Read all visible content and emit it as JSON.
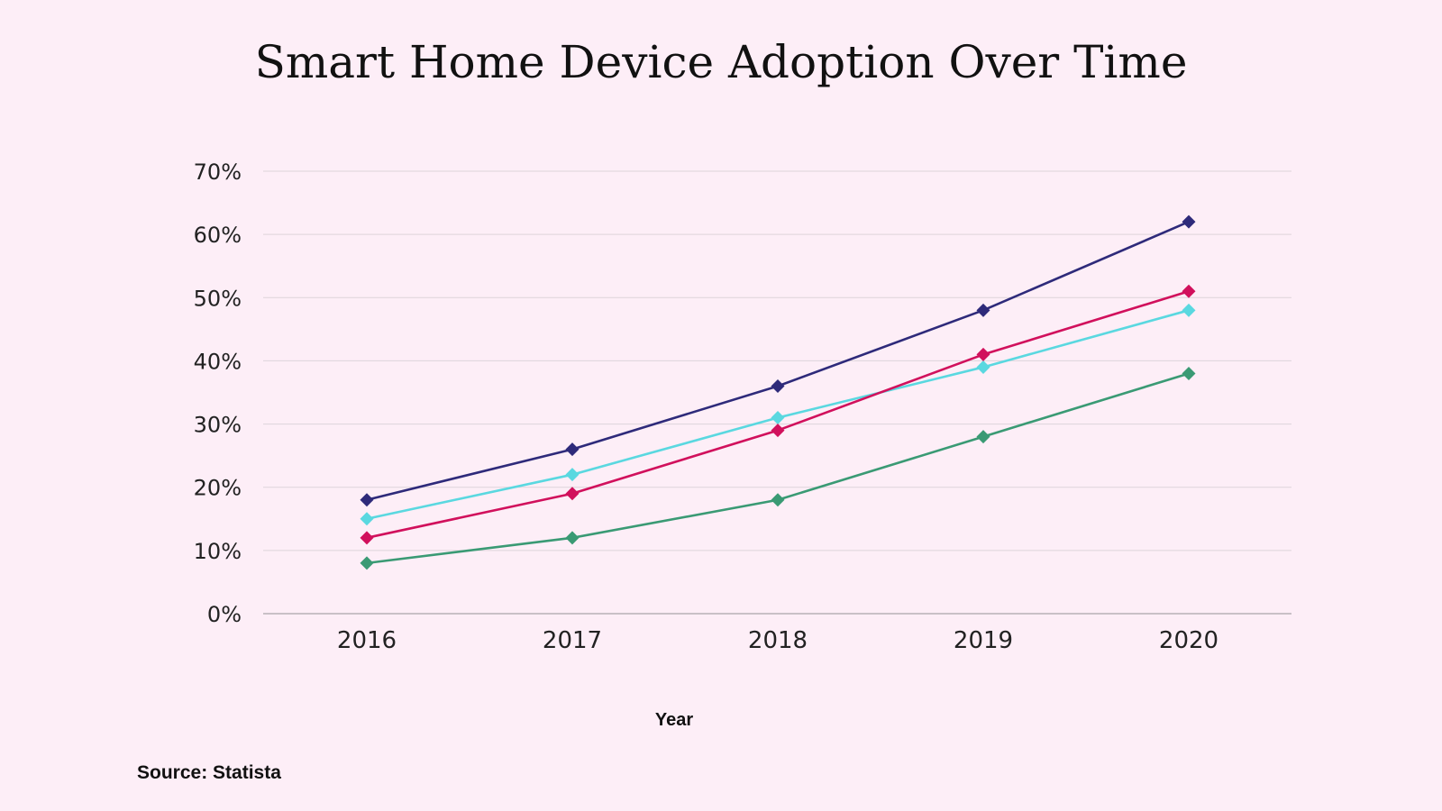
{
  "chart_data": {
    "type": "line",
    "title": "Smart Home Device Adoption Over Time",
    "xlabel": "Year",
    "ylabel": "",
    "x": [
      "2016",
      "2017",
      "2018",
      "2019",
      "2020"
    ],
    "ylim": [
      0,
      70
    ],
    "yticks": [
      0,
      10,
      20,
      30,
      40,
      50,
      60,
      70
    ],
    "ytick_labels": [
      "0%",
      "10%",
      "20%",
      "30%",
      "40%",
      "50%",
      "60%",
      "70%"
    ],
    "grid": "horizontal",
    "legend": "none",
    "marker": "diamond",
    "series": [
      {
        "values": [
          18,
          26,
          36,
          48,
          62
        ],
        "color": "#2e2a7a"
      },
      {
        "values": [
          15,
          22,
          31,
          39,
          48
        ],
        "color": "#5ad8e0"
      },
      {
        "values": [
          12,
          19,
          29,
          41,
          51
        ],
        "color": "#d1105c"
      },
      {
        "values": [
          8,
          12,
          18,
          28,
          38
        ],
        "color": "#3a9a74"
      }
    ]
  },
  "footer": {
    "source": "Source: Statista"
  }
}
